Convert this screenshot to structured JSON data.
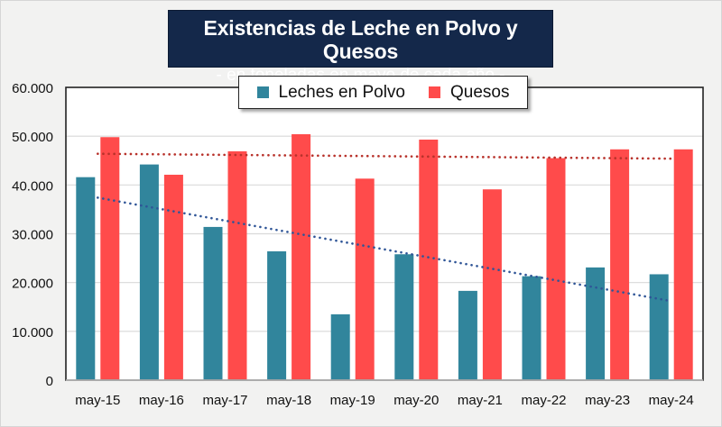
{
  "title": "Existencias de Leche en Polvo y Quesos",
  "subtitle": "- en toneladas en mayo de cada año -",
  "colors": {
    "background": "#f2f2f1",
    "plot_background": "#ffffff",
    "title_background": "#14284a",
    "leches": "#31859c",
    "quesos": "#ff4b4b",
    "leches_trend": "#2f5597",
    "quesos_trend": "#b8322b",
    "grid": "#d9d9d9"
  },
  "legend": [
    {
      "name": "Leches en Polvo",
      "color": "#31859c"
    },
    {
      "name": "Quesos",
      "color": "#ff4b4b"
    }
  ],
  "chart_data": {
    "type": "bar",
    "title": "Existencias de Leche en Polvo y Quesos",
    "subtitle": "- en toneladas en mayo de cada año -",
    "xlabel": "",
    "ylabel": "",
    "categories": [
      "may-15",
      "may-16",
      "may-17",
      "may-18",
      "may-19",
      "may-20",
      "may-21",
      "may-22",
      "may-23",
      "may-24"
    ],
    "series": [
      {
        "name": "Leches en Polvo",
        "values": [
          41600,
          44200,
          31400,
          26400,
          13500,
          25800,
          18300,
          21300,
          23100,
          21700
        ]
      },
      {
        "name": "Quesos",
        "values": [
          49800,
          42100,
          46900,
          50400,
          41300,
          49300,
          39100,
          45500,
          47300,
          47300
        ]
      }
    ],
    "trendlines": [
      {
        "series": "Leches en Polvo",
        "type": "linear",
        "style": "dotted",
        "start": 37400,
        "end": 16200
      },
      {
        "series": "Quesos",
        "type": "linear",
        "style": "dotted",
        "start": 46400,
        "end": 45400
      }
    ],
    "ylim": [
      0,
      60000
    ],
    "yticks": [
      0,
      10000,
      20000,
      30000,
      40000,
      50000,
      60000
    ],
    "ytick_labels": [
      "0",
      "10.000",
      "20.000",
      "30.000",
      "40.000",
      "50.000",
      "60.000"
    ],
    "grid": true,
    "legend_position": "top-center"
  }
}
